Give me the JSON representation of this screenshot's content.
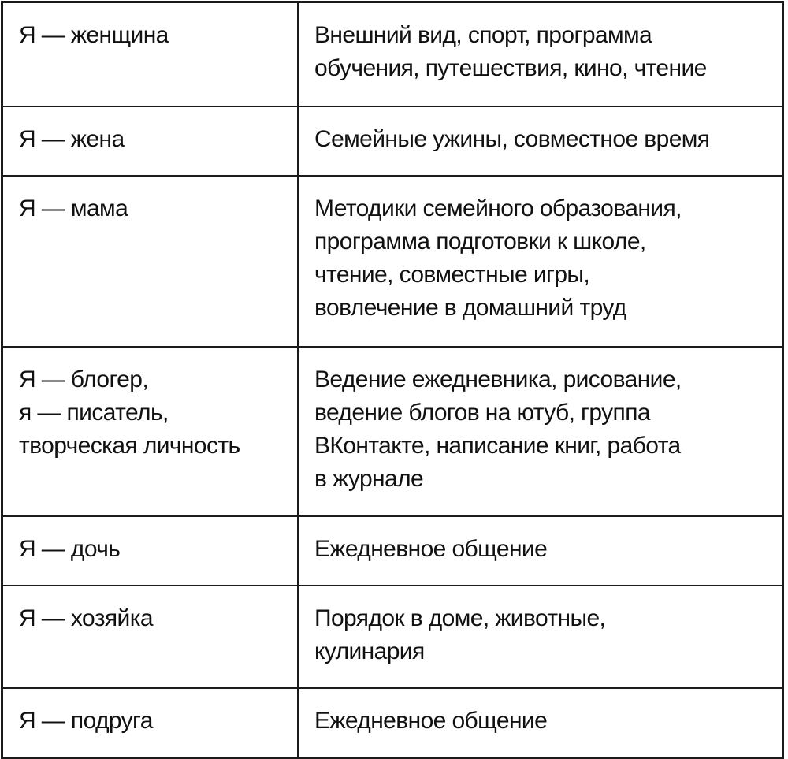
{
  "table": {
    "rows": [
      {
        "role": "Я — женщина",
        "activities": "Внешний вид, спорт, программа\nобучения, путешествия, кино, чтение"
      },
      {
        "role": "Я — жена",
        "activities": "Семейные ужины, совместное время"
      },
      {
        "role": "Я — мама",
        "activities": "Методики семейного образования,\nпрограмма подготовки к школе,\nчтение, совместные игры,\nвовлечение в домашний труд"
      },
      {
        "role": "Я — блогер,\nя — писатель,\nтворческая личность",
        "activities": "Ведение ежедневника, рисование,\nведение блогов на ютуб, группа\nВКонтакте, написание книг, работа\nв журнале"
      },
      {
        "role": "Я — дочь",
        "activities": "Ежедневное общение"
      },
      {
        "role": "Я — хозяйка",
        "activities": "Порядок в доме, животные,\nкулинария"
      },
      {
        "role": "Я — подруга",
        "activities": "Ежедневное общение"
      }
    ]
  }
}
